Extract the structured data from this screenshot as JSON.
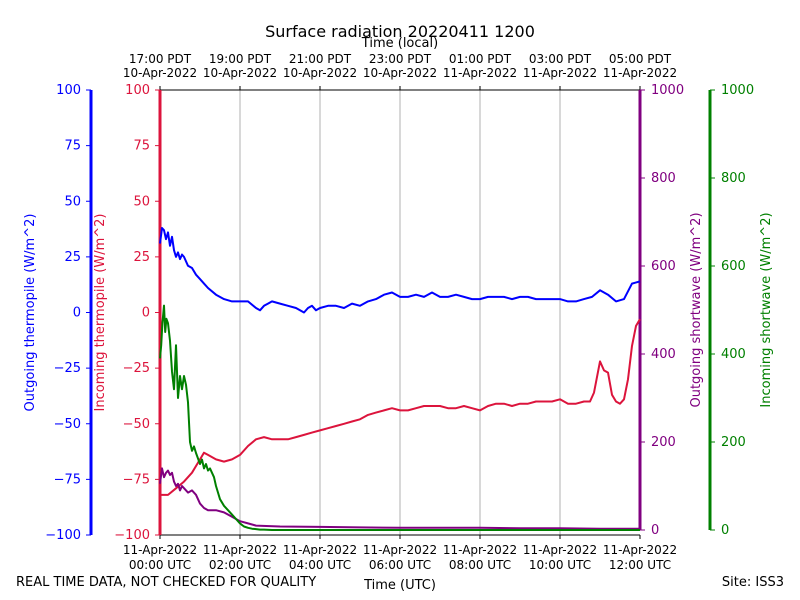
{
  "chart_data": {
    "type": "line",
    "title": "Surface radiation 20220411 1200",
    "top_xlabel": "Time (local)",
    "xlabel": "Time (UTC)",
    "x_unit": "hours since 11-Apr-2022 00:00 UTC",
    "xlim": [
      0,
      12
    ],
    "grid": "vertical only",
    "x_ticks_utc": [
      {
        "x": 0,
        "line1": "11-Apr-2022",
        "line2": "00:00 UTC"
      },
      {
        "x": 2,
        "line1": "11-Apr-2022",
        "line2": "02:00 UTC"
      },
      {
        "x": 4,
        "line1": "11-Apr-2022",
        "line2": "04:00 UTC"
      },
      {
        "x": 6,
        "line1": "11-Apr-2022",
        "line2": "06:00 UTC"
      },
      {
        "x": 8,
        "line1": "11-Apr-2022",
        "line2": "08:00 UTC"
      },
      {
        "x": 10,
        "line1": "11-Apr-2022",
        "line2": "10:00 UTC"
      },
      {
        "x": 12,
        "line1": "11-Apr-2022",
        "line2": "12:00 UTC"
      }
    ],
    "x_ticks_local": [
      {
        "x": 0,
        "line1": "17:00 PDT",
        "line2": "10-Apr-2022"
      },
      {
        "x": 2,
        "line1": "19:00 PDT",
        "line2": "10-Apr-2022"
      },
      {
        "x": 4,
        "line1": "21:00 PDT",
        "line2": "10-Apr-2022"
      },
      {
        "x": 6,
        "line1": "23:00 PDT",
        "line2": "10-Apr-2022"
      },
      {
        "x": 8,
        "line1": "01:00 PDT",
        "line2": "11-Apr-2022"
      },
      {
        "x": 10,
        "line1": "03:00 PDT",
        "line2": "11-Apr-2022"
      },
      {
        "x": 12,
        "line1": "05:00 PDT",
        "line2": "11-Apr-2022"
      }
    ],
    "axes": [
      {
        "id": "out_thermo",
        "label": "Outgoing thermopile (W/m^2)",
        "color": "#0000ff",
        "ylim": [
          -100,
          100
        ],
        "ticks": [
          100,
          75,
          50,
          25,
          0,
          -25,
          -50,
          -75,
          -100
        ]
      },
      {
        "id": "in_thermo",
        "label": "Incoming thermopile (W/m^2)",
        "color": "#dc143c",
        "ylim": [
          -100,
          100
        ],
        "ticks": [
          100,
          75,
          50,
          25,
          0,
          -25,
          -50,
          -75,
          -100
        ]
      },
      {
        "id": "out_sw",
        "label": "Outgoing shortwave (W/m^2)",
        "color": "#800080",
        "ylim": [
          0,
          1000
        ],
        "ticks": [
          0,
          200,
          400,
          600,
          800,
          1000
        ]
      },
      {
        "id": "in_sw",
        "label": "Incoming shortwave (W/m^2)",
        "color": "#008000",
        "ylim": [
          0,
          1000
        ],
        "ticks": [
          0,
          200,
          400,
          600,
          800,
          1000
        ]
      }
    ],
    "series": [
      {
        "name": "Outgoing thermopile",
        "axis": "out_thermo",
        "color": "#0000ff",
        "x": [
          0,
          0.05,
          0.1,
          0.15,
          0.2,
          0.25,
          0.3,
          0.35,
          0.4,
          0.45,
          0.5,
          0.55,
          0.6,
          0.7,
          0.8,
          0.9,
          1.0,
          1.1,
          1.2,
          1.4,
          1.6,
          1.8,
          2.0,
          2.2,
          2.4,
          2.5,
          2.6,
          2.7,
          2.8,
          3.0,
          3.2,
          3.4,
          3.6,
          3.7,
          3.8,
          3.9,
          4.0,
          4.2,
          4.4,
          4.6,
          4.8,
          5.0,
          5.2,
          5.4,
          5.6,
          5.8,
          6.0,
          6.2,
          6.4,
          6.6,
          6.8,
          7.0,
          7.2,
          7.4,
          7.6,
          7.8,
          8.0,
          8.2,
          8.4,
          8.6,
          8.8,
          9.0,
          9.2,
          9.4,
          9.6,
          9.8,
          10.0,
          10.2,
          10.4,
          10.6,
          10.8,
          11.0,
          11.2,
          11.4,
          11.6,
          11.8,
          12.0
        ],
        "y": [
          31,
          38,
          37,
          33,
          36,
          30,
          34,
          28,
          25,
          27,
          24,
          26,
          25,
          21,
          20,
          17,
          15,
          13,
          11,
          8,
          6,
          5,
          5,
          5,
          2,
          1,
          3,
          4,
          5,
          4,
          3,
          2,
          0,
          2,
          3,
          1,
          2,
          3,
          3,
          2,
          4,
          3,
          5,
          6,
          8,
          9,
          7,
          7,
          8,
          7,
          9,
          7,
          7,
          8,
          7,
          6,
          6,
          7,
          7,
          7,
          6,
          7,
          7,
          6,
          6,
          6,
          6,
          5,
          5,
          6,
          7,
          10,
          8,
          5,
          6,
          13,
          14
        ]
      },
      {
        "name": "Incoming thermopile",
        "axis": "in_thermo",
        "color": "#dc143c",
        "x": [
          0,
          0.2,
          0.4,
          0.6,
          0.8,
          1.0,
          1.1,
          1.2,
          1.4,
          1.6,
          1.8,
          2.0,
          2.2,
          2.4,
          2.6,
          2.8,
          3.0,
          3.2,
          3.4,
          3.6,
          3.8,
          4.0,
          4.2,
          4.4,
          4.6,
          4.8,
          5.0,
          5.2,
          5.4,
          5.6,
          5.8,
          6.0,
          6.2,
          6.4,
          6.6,
          6.8,
          7.0,
          7.2,
          7.4,
          7.6,
          7.8,
          8.0,
          8.2,
          8.4,
          8.6,
          8.8,
          9.0,
          9.2,
          9.4,
          9.6,
          9.8,
          10.0,
          10.2,
          10.4,
          10.6,
          10.75,
          10.85,
          11.0,
          11.1,
          11.2,
          11.3,
          11.4,
          11.5,
          11.6,
          11.7,
          11.8,
          11.9,
          12.0
        ],
        "y": [
          -82,
          -82,
          -79,
          -76,
          -72,
          -66,
          -63,
          -64,
          -66,
          -67,
          -66,
          -64,
          -60,
          -57,
          -56,
          -57,
          -57,
          -57,
          -56,
          -55,
          -54,
          -53,
          -52,
          -51,
          -50,
          -49,
          -48,
          -46,
          -45,
          -44,
          -43,
          -44,
          -44,
          -43,
          -42,
          -42,
          -42,
          -43,
          -43,
          -42,
          -43,
          -44,
          -42,
          -41,
          -41,
          -42,
          -41,
          -41,
          -40,
          -40,
          -40,
          -39,
          -41,
          -41,
          -40,
          -40,
          -36,
          -22,
          -26,
          -27,
          -37,
          -40,
          -41,
          -39,
          -30,
          -15,
          -6,
          -3
        ]
      },
      {
        "name": "Outgoing shortwave",
        "axis": "out_sw",
        "color": "#800080",
        "x": [
          0,
          0.05,
          0.1,
          0.15,
          0.2,
          0.25,
          0.3,
          0.35,
          0.4,
          0.45,
          0.5,
          0.55,
          0.6,
          0.7,
          0.8,
          0.9,
          1.0,
          1.1,
          1.2,
          1.4,
          1.6,
          1.8,
          2.0,
          2.2,
          2.4,
          3.0,
          4.0,
          5.0,
          6.0,
          7.0,
          8.0,
          9.0,
          10.0,
          11.0,
          12.0
        ],
        "y": [
          105,
          140,
          120,
          130,
          135,
          125,
          130,
          110,
          100,
          105,
          90,
          100,
          95,
          85,
          90,
          80,
          60,
          50,
          45,
          45,
          40,
          30,
          20,
          15,
          10,
          8,
          7,
          6,
          5,
          5,
          5,
          4,
          4,
          3,
          3
        ]
      },
      {
        "name": "Incoming shortwave",
        "axis": "in_sw",
        "color": "#008000",
        "x": [
          0,
          0.03,
          0.06,
          0.1,
          0.13,
          0.16,
          0.2,
          0.25,
          0.3,
          0.35,
          0.4,
          0.45,
          0.5,
          0.55,
          0.6,
          0.65,
          0.7,
          0.75,
          0.8,
          0.85,
          0.9,
          1.0,
          1.05,
          1.1,
          1.15,
          1.2,
          1.25,
          1.3,
          1.35,
          1.4,
          1.5,
          1.6,
          1.7,
          1.8,
          1.9,
          2.0,
          2.1,
          2.2,
          2.3,
          2.4,
          2.5,
          2.6,
          2.8,
          3.0,
          3.5,
          4.0,
          5.0,
          6.0,
          7.0,
          8.0,
          9.0,
          10.0,
          11.0,
          12.0
        ],
        "y": [
          390,
          420,
          470,
          510,
          450,
          480,
          470,
          430,
          360,
          320,
          420,
          300,
          350,
          320,
          350,
          330,
          290,
          200,
          180,
          190,
          175,
          150,
          160,
          140,
          150,
          135,
          140,
          130,
          120,
          100,
          70,
          55,
          45,
          35,
          25,
          15,
          8,
          5,
          3,
          2,
          1,
          1,
          0,
          0,
          0,
          0,
          0,
          0,
          0,
          0,
          0,
          0,
          0,
          0
        ]
      }
    ]
  },
  "footer": {
    "left": "REAL TIME DATA, NOT CHECKED FOR QUALITY",
    "right": "Site: ISS3"
  }
}
